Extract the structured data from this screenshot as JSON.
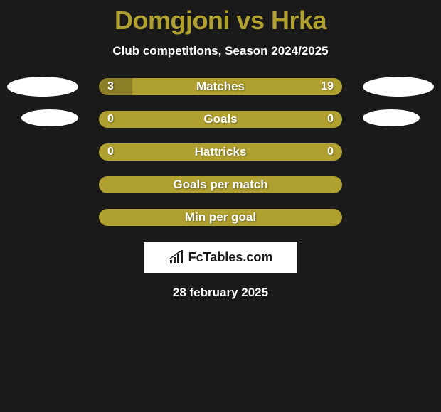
{
  "title": "Domgjoni vs Hrka",
  "subtitle": "Club competitions, Season 2024/2025",
  "logo_text": "FcTables.com",
  "date": "28 february 2025",
  "colors": {
    "background": "#1a1a1a",
    "accent": "#b0a030",
    "accent_dark": "#8d7e28",
    "text": "#ffffff",
    "title": "#b0a030"
  },
  "stats": [
    {
      "label": "Matches",
      "left_value": "3",
      "right_value": "19",
      "left_pct": 13.6,
      "has_values": true
    },
    {
      "label": "Goals",
      "left_value": "0",
      "right_value": "0",
      "left_pct": 0,
      "has_values": true
    },
    {
      "label": "Hattricks",
      "left_value": "0",
      "right_value": "0",
      "left_pct": 0,
      "has_values": true
    },
    {
      "label": "Goals per match",
      "left_value": "",
      "right_value": "",
      "left_pct": 0,
      "has_values": false
    },
    {
      "label": "Min per goal",
      "left_value": "",
      "right_value": "",
      "left_pct": 0,
      "has_values": false
    }
  ]
}
